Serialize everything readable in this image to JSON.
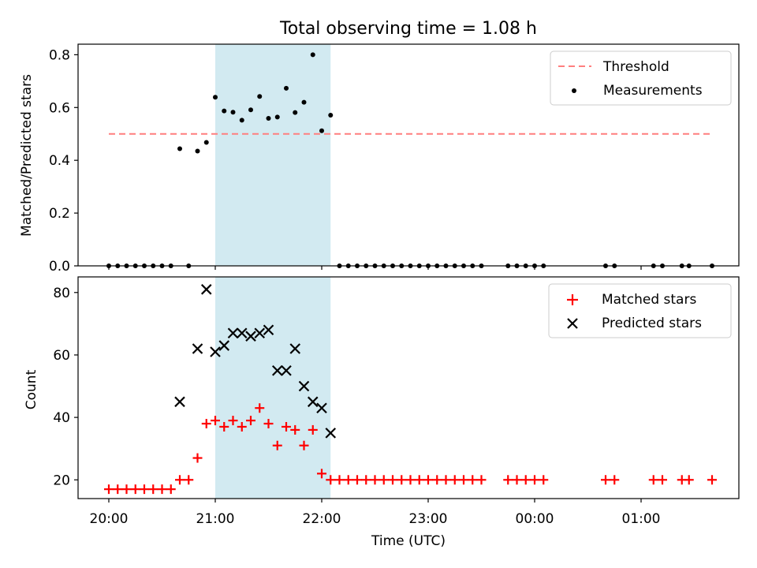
{
  "title": "Total observing time = 1.08 h",
  "chart_data": [
    {
      "type": "scatter",
      "ylabel": "Matched/Predicted stars",
      "ylim": [
        0.0,
        0.84
      ],
      "yticks": [
        "0.0",
        "0.2",
        "0.4",
        "0.6",
        "0.8"
      ],
      "shaded_region": {
        "x_start": "21:00",
        "x_end": "22:05",
        "color": "#add8e6"
      },
      "threshold": {
        "name": "Threshold",
        "value": 0.5,
        "x_start": "20:00",
        "x_end": "01:40",
        "color": "#ff7f7f",
        "style": "dashed"
      },
      "series": [
        {
          "name": "Measurements",
          "marker": "dot",
          "color": "#000000",
          "points": [
            [
              "20:00",
              0.0
            ],
            [
              "20:05",
              0.0
            ],
            [
              "20:10",
              0.0
            ],
            [
              "20:15",
              0.0
            ],
            [
              "20:20",
              0.0
            ],
            [
              "20:25",
              0.0
            ],
            [
              "20:30",
              0.0
            ],
            [
              "20:35",
              0.0
            ],
            [
              "20:40",
              0.444
            ],
            [
              "20:45",
              0.0
            ],
            [
              "20:50",
              0.435
            ],
            [
              "20:55",
              0.468
            ],
            [
              "21:00",
              0.639
            ],
            [
              "21:05",
              0.587
            ],
            [
              "21:10",
              0.582
            ],
            [
              "21:15",
              0.552
            ],
            [
              "21:20",
              0.591
            ],
            [
              "21:25",
              0.642
            ],
            [
              "21:30",
              0.559
            ],
            [
              "21:35",
              0.564
            ],
            [
              "21:40",
              0.673
            ],
            [
              "21:45",
              0.581
            ],
            [
              "21:50",
              0.62
            ],
            [
              "21:55",
              0.8
            ],
            [
              "22:00",
              0.512
            ],
            [
              "22:05",
              0.571
            ],
            [
              "22:10",
              0.0
            ],
            [
              "22:15",
              0.0
            ],
            [
              "22:20",
              0.0
            ],
            [
              "22:25",
              0.0
            ],
            [
              "22:30",
              0.0
            ],
            [
              "22:35",
              0.0
            ],
            [
              "22:40",
              0.0
            ],
            [
              "22:45",
              0.0
            ],
            [
              "22:50",
              0.0
            ],
            [
              "22:55",
              0.0
            ],
            [
              "23:00",
              0.0
            ],
            [
              "23:05",
              0.0
            ],
            [
              "23:10",
              0.0
            ],
            [
              "23:15",
              0.0
            ],
            [
              "23:20",
              0.0
            ],
            [
              "23:25",
              0.0
            ],
            [
              "23:30",
              0.0
            ],
            [
              "23:45",
              0.0
            ],
            [
              "23:50",
              0.0
            ],
            [
              "23:55",
              0.0
            ],
            [
              "00:00",
              0.0
            ],
            [
              "00:05",
              0.0
            ],
            [
              "00:40",
              0.0
            ],
            [
              "00:45",
              0.0
            ],
            [
              "01:07",
              0.0
            ],
            [
              "01:12",
              0.0
            ],
            [
              "01:23",
              0.0
            ],
            [
              "01:27",
              0.0
            ],
            [
              "01:40",
              0.0
            ]
          ]
        }
      ],
      "legend": {
        "position": "upper right",
        "entries": [
          "Threshold",
          "Measurements"
        ]
      }
    },
    {
      "type": "scatter",
      "xlabel": "Time (UTC)",
      "ylabel": "Count",
      "ylim": [
        14,
        85
      ],
      "yticks": [
        "20",
        "40",
        "60",
        "80"
      ],
      "xticks": [
        "20:00",
        "21:00",
        "22:00",
        "23:00",
        "00:00",
        "01:00"
      ],
      "shaded_region": {
        "x_start": "21:00",
        "x_end": "22:05",
        "color": "#add8e6"
      },
      "series": [
        {
          "name": "Matched stars",
          "marker": "plus",
          "color": "#ff0000",
          "points": [
            [
              "20:00",
              17
            ],
            [
              "20:05",
              17
            ],
            [
              "20:10",
              17
            ],
            [
              "20:15",
              17
            ],
            [
              "20:20",
              17
            ],
            [
              "20:25",
              17
            ],
            [
              "20:30",
              17
            ],
            [
              "20:35",
              17
            ],
            [
              "20:40",
              20
            ],
            [
              "20:45",
              20
            ],
            [
              "20:50",
              27
            ],
            [
              "20:55",
              38
            ],
            [
              "21:00",
              39
            ],
            [
              "21:05",
              37
            ],
            [
              "21:10",
              39
            ],
            [
              "21:15",
              37
            ],
            [
              "21:20",
              39
            ],
            [
              "21:25",
              43
            ],
            [
              "21:30",
              38
            ],
            [
              "21:35",
              31
            ],
            [
              "21:40",
              37
            ],
            [
              "21:45",
              36
            ],
            [
              "21:50",
              31
            ],
            [
              "21:55",
              36
            ],
            [
              "22:00",
              22
            ],
            [
              "22:05",
              20
            ],
            [
              "22:10",
              20
            ],
            [
              "22:15",
              20
            ],
            [
              "22:20",
              20
            ],
            [
              "22:25",
              20
            ],
            [
              "22:30",
              20
            ],
            [
              "22:35",
              20
            ],
            [
              "22:40",
              20
            ],
            [
              "22:45",
              20
            ],
            [
              "22:50",
              20
            ],
            [
              "22:55",
              20
            ],
            [
              "23:00",
              20
            ],
            [
              "23:05",
              20
            ],
            [
              "23:10",
              20
            ],
            [
              "23:15",
              20
            ],
            [
              "23:20",
              20
            ],
            [
              "23:25",
              20
            ],
            [
              "23:30",
              20
            ],
            [
              "23:45",
              20
            ],
            [
              "23:50",
              20
            ],
            [
              "23:55",
              20
            ],
            [
              "00:00",
              20
            ],
            [
              "00:05",
              20
            ],
            [
              "00:40",
              20
            ],
            [
              "00:45",
              20
            ],
            [
              "01:07",
              20
            ],
            [
              "01:12",
              20
            ],
            [
              "01:23",
              20
            ],
            [
              "01:27",
              20
            ],
            [
              "01:40",
              20
            ]
          ]
        },
        {
          "name": "Predicted stars",
          "marker": "x",
          "color": "#000000",
          "points": [
            [
              "20:40",
              45
            ],
            [
              "20:50",
              62
            ],
            [
              "20:55",
              81
            ],
            [
              "21:00",
              61
            ],
            [
              "21:05",
              63
            ],
            [
              "21:10",
              67
            ],
            [
              "21:15",
              67
            ],
            [
              "21:20",
              66
            ],
            [
              "21:25",
              67
            ],
            [
              "21:30",
              68
            ],
            [
              "21:35",
              55
            ],
            [
              "21:40",
              55
            ],
            [
              "21:45",
              62
            ],
            [
              "21:50",
              50
            ],
            [
              "21:55",
              45
            ],
            [
              "22:00",
              43
            ],
            [
              "22:05",
              35
            ]
          ]
        }
      ],
      "legend": {
        "position": "upper right",
        "entries": [
          "Matched stars",
          "Predicted stars"
        ]
      }
    }
  ]
}
